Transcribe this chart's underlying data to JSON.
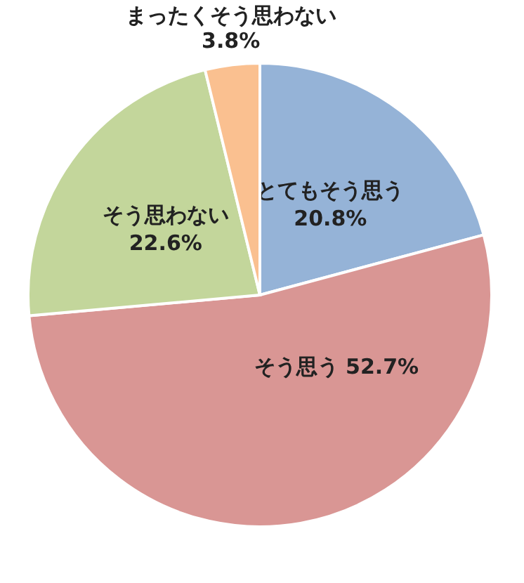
{
  "chart_data": {
    "type": "pie",
    "categories": [
      "とてもそう思う",
      "そう思う",
      "そう思わない",
      "まったくそう思わない"
    ],
    "values": [
      20.8,
      52.7,
      22.6,
      3.8
    ],
    "colors": [
      "#95b3d7",
      "#d99694",
      "#c3d69b",
      "#fac090"
    ],
    "value_labels": [
      "20.8%",
      "52.7%",
      "22.6%",
      "3.8%"
    ]
  }
}
